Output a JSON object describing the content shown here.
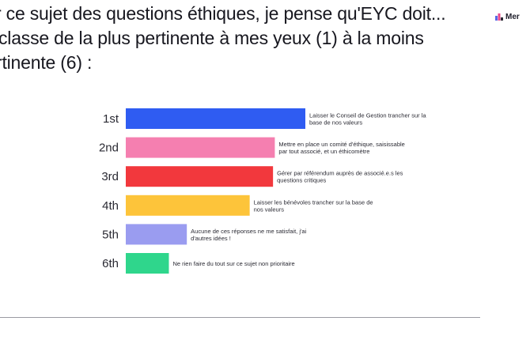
{
  "question": {
    "line1": "r ce sujet des questions éthiques, je pense qu'EYC doit...",
    "line2": "classe de la plus pertinente à mes yeux (1) à la moins",
    "line3": "rtinente (6) :"
  },
  "brand": {
    "name": "Mer",
    "icon": "mentimeter-logo-icon"
  },
  "chart_data": {
    "type": "bar",
    "orientation": "horizontal",
    "categories": [
      "1st",
      "2nd",
      "3rd",
      "4th",
      "5th",
      "6th"
    ],
    "values": [
      100,
      83,
      82,
      69,
      34,
      24
    ],
    "bar_labels": [
      [
        "Laisser le Conseil de Gestion trancher sur la",
        "base de nos valeurs"
      ],
      [
        "Mettre en place un comité d'éthique, saisissable",
        "par tout associé, et un éthicomètre"
      ],
      [
        "Gérer par référendum auprès de associé.e.s les",
        "questions critiques"
      ],
      [
        "Laisser les bénévoles trancher sur la base de",
        "nos valeurs"
      ],
      [
        "Aucune de ces réponses ne me satisfait, j'ai",
        "d'autres idées !"
      ],
      [
        "Ne rien faire du tout sur ce sujet non prioritaire"
      ]
    ],
    "colors": [
      "#2f5cf2",
      "#f57fb0",
      "#f2383d",
      "#fdc43a",
      "#9a9cf0",
      "#2fd68c"
    ],
    "grid": false,
    "legend": "none"
  }
}
